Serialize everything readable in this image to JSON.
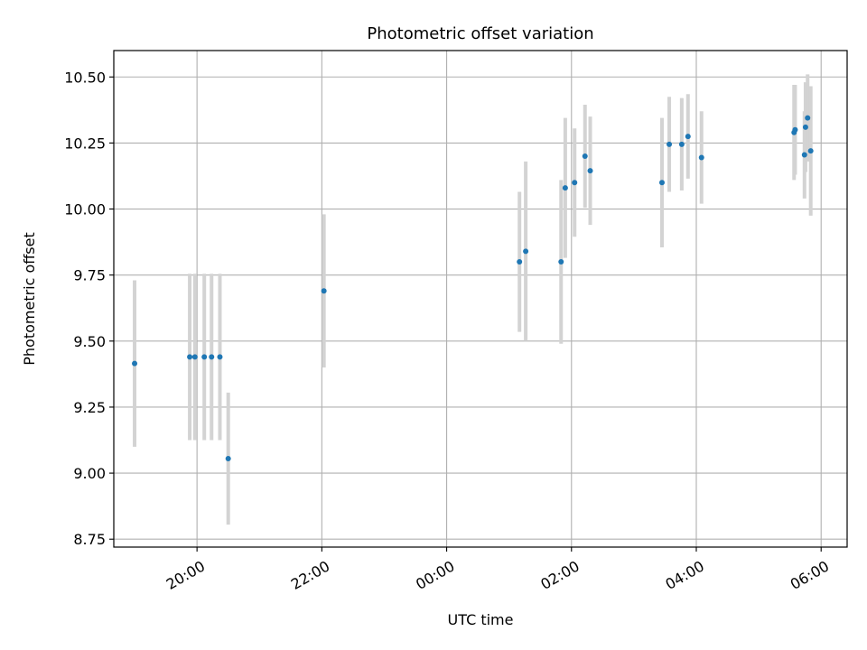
{
  "chart_data": {
    "type": "scatter",
    "title": "Photometric offset variation",
    "xlabel": "UTC time",
    "ylabel": "Photometric offset",
    "x_axis": {
      "scale": "time",
      "range": [
        "2023-01-01T18:40",
        "2023-01-02T06:25"
      ],
      "ticks": [
        {
          "value": "2023-01-01T20:00",
          "label": "20:00"
        },
        {
          "value": "2023-01-01T22:00",
          "label": "22:00"
        },
        {
          "value": "2023-01-02T00:00",
          "label": "00:00"
        },
        {
          "value": "2023-01-02T02:00",
          "label": "02:00"
        },
        {
          "value": "2023-01-02T04:00",
          "label": "04:00"
        },
        {
          "value": "2023-01-02T06:00",
          "label": "06:00"
        }
      ]
    },
    "y_axis": {
      "range": [
        8.72,
        10.6
      ],
      "ticks": [
        {
          "value": 8.75,
          "label": "8.75"
        },
        {
          "value": 9.0,
          "label": "9.00"
        },
        {
          "value": 9.25,
          "label": "9.25"
        },
        {
          "value": 9.5,
          "label": "9.50"
        },
        {
          "value": 9.75,
          "label": "9.75"
        },
        {
          "value": 10.0,
          "label": "10.00"
        },
        {
          "value": 10.25,
          "label": "10.25"
        },
        {
          "value": 10.5,
          "label": "10.50"
        }
      ]
    },
    "grid": true,
    "marker_color": "#1f77b4",
    "errorbar_color": "#d3d3d3",
    "points": [
      {
        "x": "2023-01-01T19:00",
        "y": 9.415,
        "err": 0.315
      },
      {
        "x": "2023-01-01T19:53",
        "y": 9.44,
        "err": 0.315
      },
      {
        "x": "2023-01-01T19:58",
        "y": 9.44,
        "err": 0.315
      },
      {
        "x": "2023-01-01T20:07",
        "y": 9.44,
        "err": 0.315
      },
      {
        "x": "2023-01-01T20:14",
        "y": 9.44,
        "err": 0.315
      },
      {
        "x": "2023-01-01T20:22",
        "y": 9.44,
        "err": 0.315
      },
      {
        "x": "2023-01-01T20:30",
        "y": 9.055,
        "err": 0.25
      },
      {
        "x": "2023-01-01T22:02",
        "y": 9.69,
        "err": 0.29
      },
      {
        "x": "2023-01-02T01:10",
        "y": 9.8,
        "err": 0.265
      },
      {
        "x": "2023-01-02T01:16",
        "y": 9.84,
        "err": 0.34
      },
      {
        "x": "2023-01-02T01:50",
        "y": 9.8,
        "err": 0.31
      },
      {
        "x": "2023-01-02T01:54",
        "y": 10.08,
        "err": 0.265
      },
      {
        "x": "2023-01-02T02:03",
        "y": 10.1,
        "err": 0.205
      },
      {
        "x": "2023-01-02T02:13",
        "y": 10.2,
        "err": 0.195
      },
      {
        "x": "2023-01-02T02:18",
        "y": 10.145,
        "err": 0.205
      },
      {
        "x": "2023-01-02T03:27",
        "y": 10.1,
        "err": 0.245
      },
      {
        "x": "2023-01-02T03:34",
        "y": 10.245,
        "err": 0.18
      },
      {
        "x": "2023-01-02T03:46",
        "y": 10.245,
        "err": 0.175
      },
      {
        "x": "2023-01-02T03:52",
        "y": 10.275,
        "err": 0.16
      },
      {
        "x": "2023-01-02T04:05",
        "y": 10.195,
        "err": 0.175
      },
      {
        "x": "2023-01-02T05:34",
        "y": 10.29,
        "err": 0.18
      },
      {
        "x": "2023-01-02T05:35",
        "y": 10.3,
        "err": 0.17
      },
      {
        "x": "2023-01-02T05:44",
        "y": 10.205,
        "err": 0.165
      },
      {
        "x": "2023-01-02T05:45",
        "y": 10.31,
        "err": 0.17
      },
      {
        "x": "2023-01-02T05:47",
        "y": 10.345,
        "err": 0.165
      },
      {
        "x": "2023-01-02T05:50",
        "y": 10.22,
        "err": 0.245
      }
    ]
  }
}
